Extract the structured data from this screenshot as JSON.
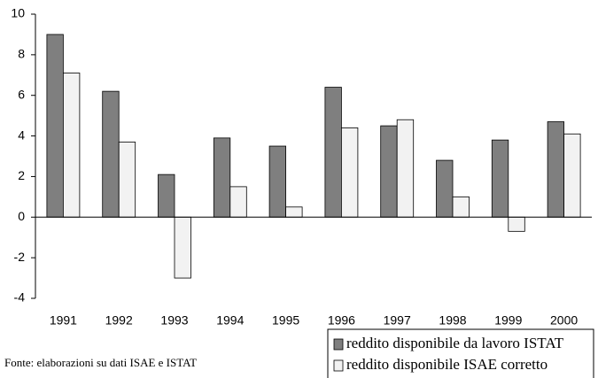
{
  "chart_data": {
    "type": "bar",
    "categories": [
      "1991",
      "1992",
      "1993",
      "1994",
      "1995",
      "1996",
      "1997",
      "1998",
      "1999",
      "2000"
    ],
    "series": [
      {
        "name": "reddito disponibile da lavoro ISTAT",
        "color": "#7f7f7f",
        "values": [
          9.0,
          6.2,
          2.1,
          3.9,
          3.5,
          6.4,
          4.5,
          2.8,
          3.8,
          4.7
        ]
      },
      {
        "name": "reddito disponibile ISAE corretto",
        "color": "#f2f2f2",
        "values": [
          7.1,
          3.7,
          -3.0,
          1.5,
          0.5,
          4.4,
          4.8,
          1.0,
          -0.7,
          4.1
        ]
      }
    ],
    "ylim": [
      -4,
      10
    ],
    "yticks": [
      -4,
      -2,
      0,
      2,
      4,
      6,
      8,
      10
    ],
    "grid": false,
    "legend": "bottom-right",
    "source": "Fonte: elaborazioni su dati ISAE e ISTAT"
  }
}
